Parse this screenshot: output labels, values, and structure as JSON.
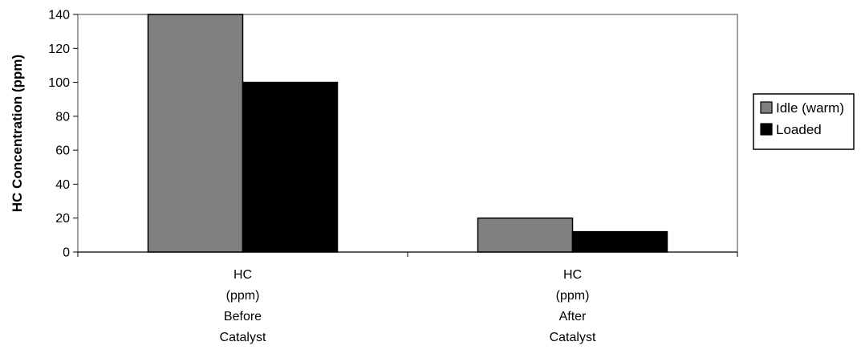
{
  "chart_data": {
    "type": "bar",
    "title": "",
    "xlabel": "",
    "ylabel": "HC Concentration (ppm)",
    "ylim": [
      0,
      140
    ],
    "yticks": [
      0,
      20,
      40,
      60,
      80,
      100,
      120,
      140
    ],
    "grid": false,
    "legend_position": "right",
    "categories": [
      [
        "HC",
        "(ppm)",
        "Before",
        "Catalyst"
      ],
      [
        "HC",
        "(ppm)",
        "After",
        "Catalyst"
      ]
    ],
    "series": [
      {
        "name": "Idle (warm)",
        "color": "#808080",
        "values": [
          140,
          20
        ]
      },
      {
        "name": "Loaded",
        "color": "#000000",
        "values": [
          100,
          12
        ]
      }
    ]
  }
}
